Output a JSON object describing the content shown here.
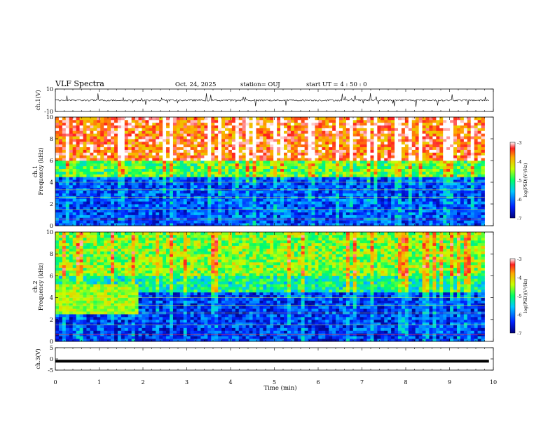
{
  "header": {
    "title": "VLF Spectra",
    "date": "Oct. 24, 2025",
    "station": "station= OUJ",
    "start_ut": "start  UT =   4 : 50 : 0"
  },
  "colors": {
    "spectrogram_low": "#00007a",
    "spectrogram_high": "#e0141e",
    "trace": "#000000"
  },
  "chart_data": [
    {
      "type": "line",
      "name": "ch1_waveform",
      "ylabel": "ch.1(V)",
      "ylim": [
        -10,
        10
      ],
      "yticks": [
        "10",
        "-10"
      ],
      "xlim": [
        0,
        10
      ],
      "description_values": "noisy waveform centered near 0 V with spikes up to about ±10 V"
    },
    {
      "type": "heatmap",
      "name": "ch1_spectrogram",
      "ylabel_line1": "ch.1",
      "ylabel_line2": "Frequency  (kHz)",
      "ylim": [
        0,
        10
      ],
      "yticks": [
        "0",
        "2",
        "4",
        "6",
        "8",
        "10"
      ],
      "xlim": [
        0,
        9.8
      ],
      "colorbar": {
        "label": "log(PSD)(V²/Hz)",
        "range": [
          -7,
          -3
        ],
        "ticks": [
          "-3",
          "-4",
          "-5",
          "-6",
          "-7"
        ]
      },
      "bands": [
        {
          "freq": [
            6,
            10
          ],
          "level": -3.5
        },
        {
          "freq": [
            4.5,
            6
          ],
          "level": -4.8
        },
        {
          "freq": [
            0,
            4.5
          ],
          "level": -6.2
        }
      ]
    },
    {
      "type": "heatmap",
      "name": "ch2_spectrogram",
      "ylabel_line1": "ch.2",
      "ylabel_line2": "Frequency  (kHz)",
      "ylim": [
        0,
        10
      ],
      "yticks": [
        "0",
        "2",
        "4",
        "6",
        "8",
        "10"
      ],
      "xlim": [
        0,
        9.8
      ],
      "colorbar": {
        "label": "log(PSD)(V²/Hz)",
        "range": [
          -7,
          -3
        ],
        "ticks": [
          "-3",
          "-4",
          "-5",
          "-6",
          "-7"
        ]
      },
      "bands": [
        {
          "freq": [
            6,
            10
          ],
          "level": -4.6
        },
        {
          "freq": [
            4.5,
            6
          ],
          "level": -5.2
        },
        {
          "freq": [
            0,
            4.5
          ],
          "level": -6.3
        }
      ]
    },
    {
      "type": "line",
      "name": "ch3_waveform",
      "ylabel": "ch.3(V)",
      "ylim": [
        -5,
        5
      ],
      "yticks": [
        "5",
        "0",
        "-5"
      ],
      "xlim": [
        0,
        10
      ],
      "values_constant": -1
    }
  ],
  "xaxis": {
    "label": "Time  (min)",
    "ticks": [
      "0",
      "1",
      "2",
      "3",
      "4",
      "5",
      "6",
      "7",
      "8",
      "9",
      "10"
    ],
    "range": [
      0,
      10
    ]
  }
}
